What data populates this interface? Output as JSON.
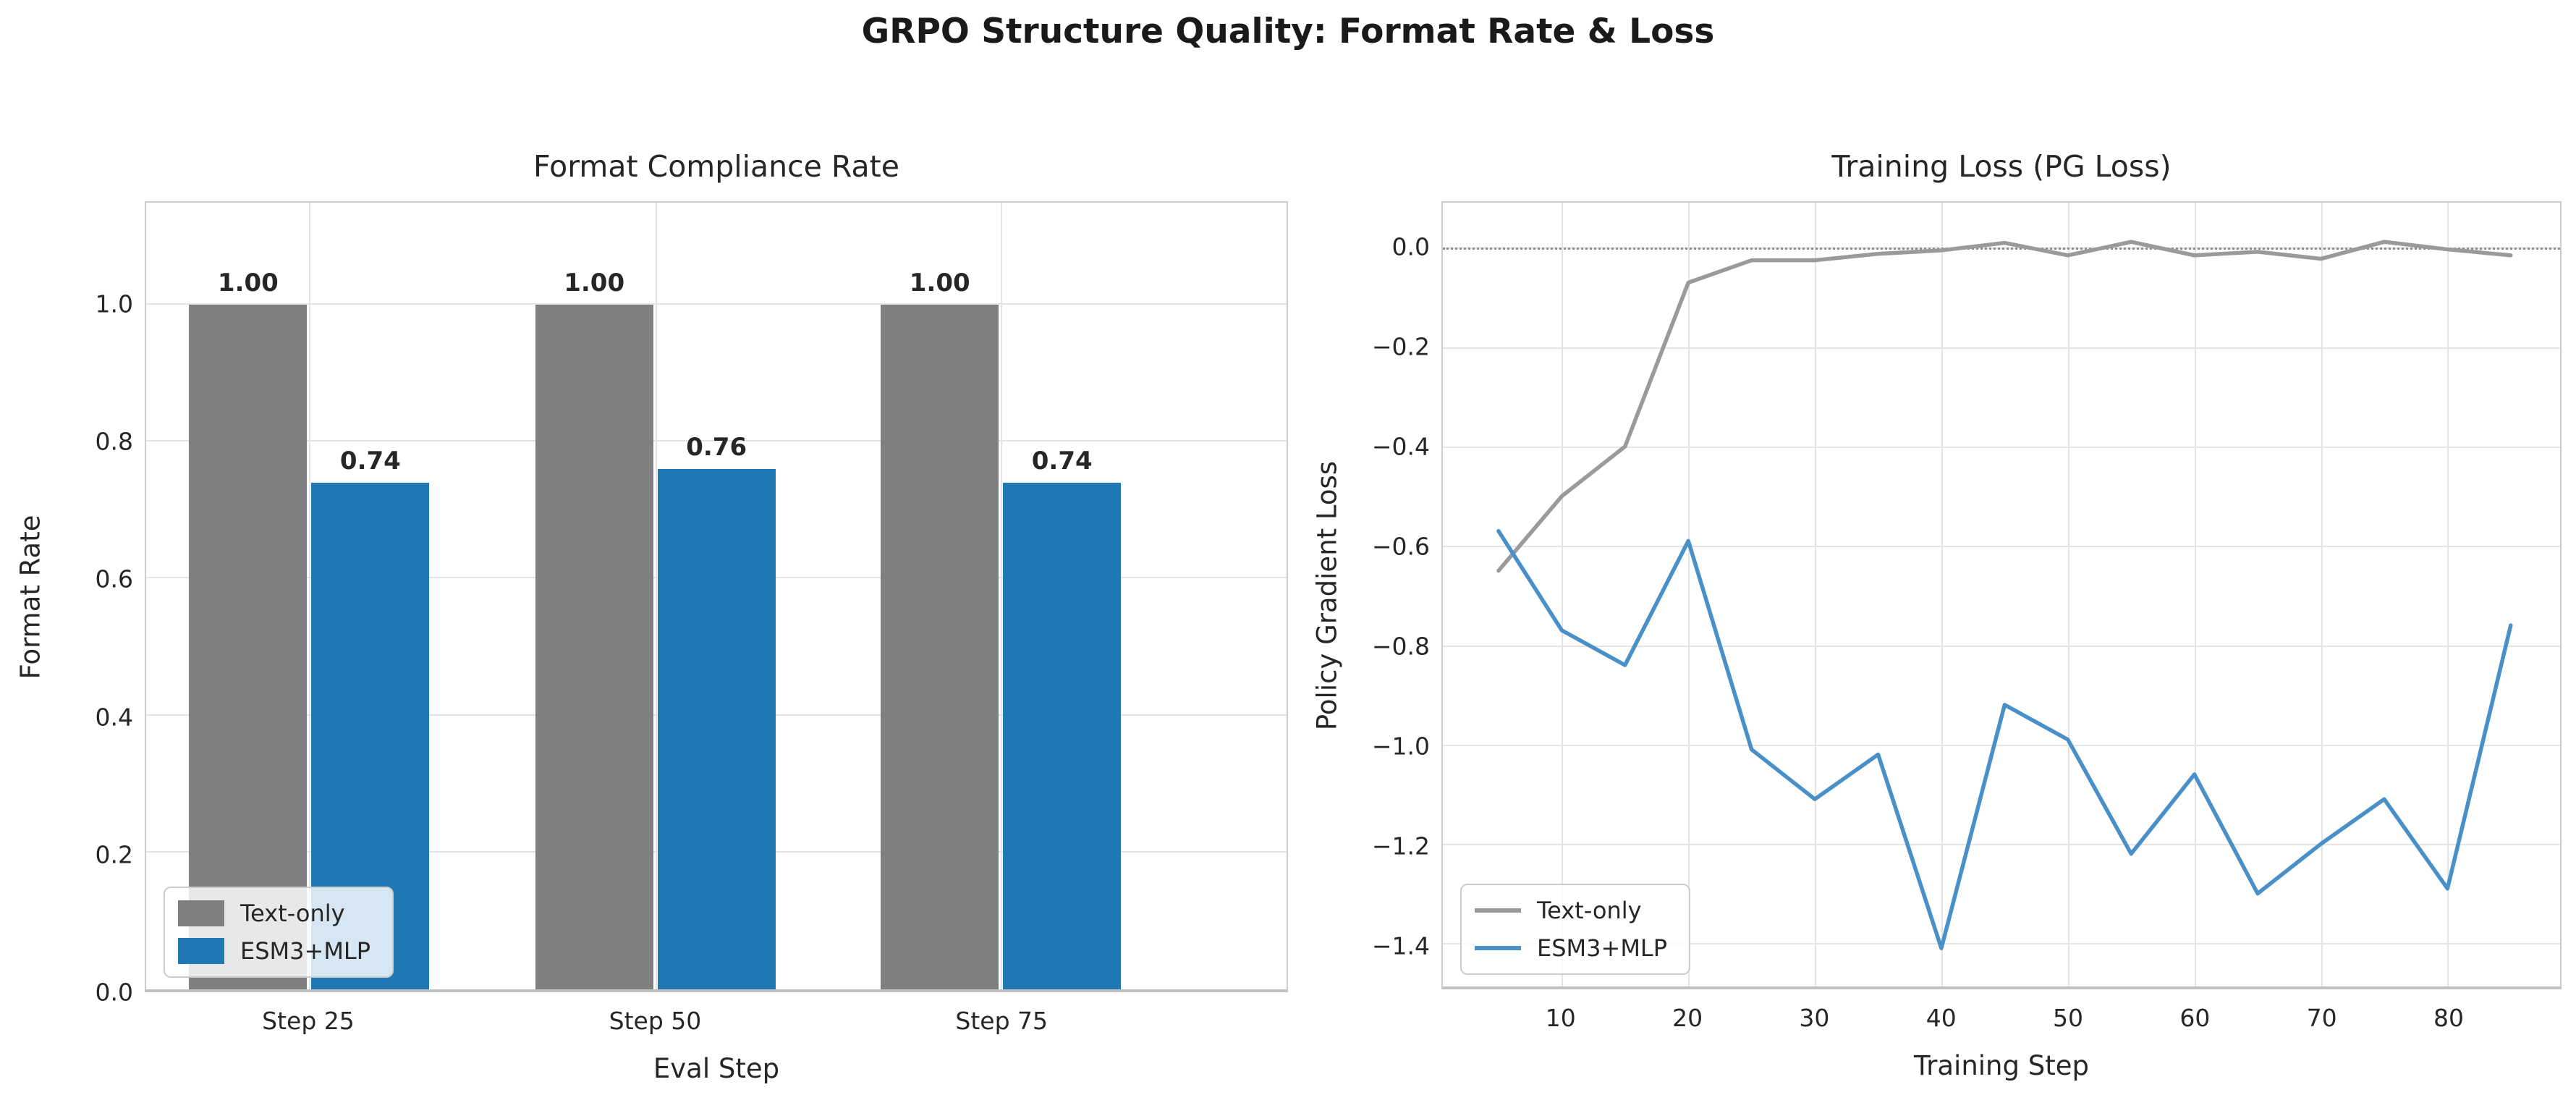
{
  "figure": {
    "title": "GRPO Structure Quality: Format Rate & Loss"
  },
  "colors": {
    "bar_gray": "#7f7f7f",
    "bar_blue": "#1f77b4",
    "line_gray": "#9a9a9a",
    "line_blue": "#4a90c8",
    "grid": "#e4e4e4",
    "zero_line": "#8c8c8c"
  },
  "chart_data": [
    {
      "type": "bar",
      "title": "Format Compliance Rate",
      "xlabel": "Eval Step",
      "ylabel": "Format Rate",
      "categories": [
        "Step 25",
        "Step 50",
        "Step 75"
      ],
      "series": [
        {
          "name": "Text-only",
          "color": "#7f7f7f",
          "values": [
            1.0,
            1.0,
            1.0
          ],
          "labels": [
            "1.00",
            "1.00",
            "1.00"
          ]
        },
        {
          "name": "ESM3+MLP",
          "color": "#1f77b4",
          "values": [
            0.74,
            0.76,
            0.74
          ],
          "labels": [
            "0.74",
            "0.76",
            "0.74"
          ]
        }
      ],
      "ylim": [
        0,
        1.149
      ],
      "yticks": [
        {
          "v": 0.0,
          "label": "0.0"
        },
        {
          "v": 0.2,
          "label": "0.2"
        },
        {
          "v": 0.4,
          "label": "0.4"
        },
        {
          "v": 0.6,
          "label": "0.6"
        },
        {
          "v": 0.8,
          "label": "0.8"
        },
        {
          "v": 1.0,
          "label": "1.0"
        }
      ],
      "grid": true,
      "legend_position": "lower left",
      "legend_swatch": "patch"
    },
    {
      "type": "line",
      "title": "Training Loss (PG Loss)",
      "xlabel": "Training Step",
      "ylabel": "Policy Gradient Loss",
      "x": [
        5,
        10,
        15,
        20,
        25,
        30,
        35,
        40,
        45,
        50,
        55,
        60,
        65,
        70,
        75,
        80,
        85
      ],
      "series": [
        {
          "name": "Text-only",
          "color": "#9a9a9a",
          "values": [
            -0.65,
            -0.5,
            -0.4,
            -0.07,
            -0.025,
            -0.025,
            -0.012,
            -0.005,
            0.01,
            -0.015,
            0.012,
            -0.015,
            -0.008,
            -0.022,
            0.012,
            -0.003,
            -0.015
          ]
        },
        {
          "name": "ESM3+MLP",
          "color": "#4a90c8",
          "values": [
            -0.57,
            -0.77,
            -0.84,
            -0.59,
            -1.01,
            -1.11,
            -1.02,
            -1.41,
            -0.92,
            -0.99,
            -1.22,
            -1.06,
            -1.3,
            -1.2,
            -1.11,
            -1.29,
            -0.76
          ]
        }
      ],
      "xlim": [
        0.6,
        88.9
      ],
      "ylim": [
        -1.487,
        0.091
      ],
      "xticks": [
        {
          "v": 10,
          "label": "10"
        },
        {
          "v": 20,
          "label": "20"
        },
        {
          "v": 30,
          "label": "30"
        },
        {
          "v": 40,
          "label": "40"
        },
        {
          "v": 50,
          "label": "50"
        },
        {
          "v": 60,
          "label": "60"
        },
        {
          "v": 70,
          "label": "70"
        },
        {
          "v": 80,
          "label": "80"
        }
      ],
      "yticks": [
        {
          "v": 0.0,
          "label": "0.0"
        },
        {
          "v": -0.2,
          "label": "−0.2"
        },
        {
          "v": -0.4,
          "label": "−0.4"
        },
        {
          "v": -0.6,
          "label": "−0.6"
        },
        {
          "v": -0.8,
          "label": "−0.8"
        },
        {
          "v": -1.0,
          "label": "−1.0"
        },
        {
          "v": -1.2,
          "label": "−1.2"
        },
        {
          "v": -1.4,
          "label": "−1.4"
        }
      ],
      "zero_line": true,
      "grid": true,
      "legend_position": "lower left",
      "legend_swatch": "line"
    }
  ]
}
